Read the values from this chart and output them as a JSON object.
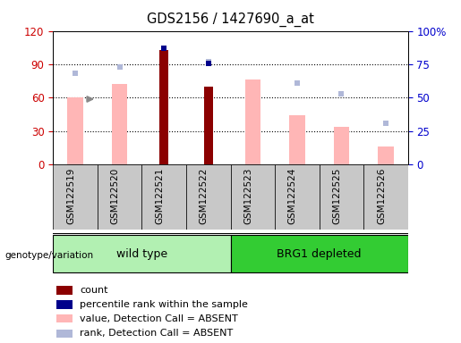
{
  "title": "GDS2156 / 1427690_a_at",
  "samples": [
    "GSM122519",
    "GSM122520",
    "GSM122521",
    "GSM122522",
    "GSM122523",
    "GSM122524",
    "GSM122525",
    "GSM122526"
  ],
  "count_values": [
    null,
    null,
    103,
    70,
    null,
    null,
    null,
    null
  ],
  "value_absent": [
    60,
    72,
    null,
    null,
    76,
    44,
    34,
    16
  ],
  "rank_absent": [
    68,
    73,
    null,
    77,
    null,
    61,
    53,
    31
  ],
  "percentile_rank": [
    null,
    null,
    87,
    76,
    null,
    null,
    null,
    null
  ],
  "ylim_left": [
    0,
    120
  ],
  "ylim_right": [
    0,
    100
  ],
  "left_ticks": [
    0,
    30,
    60,
    90,
    120
  ],
  "right_ticks": [
    0,
    25,
    50,
    75,
    100
  ],
  "right_tick_labels": [
    "0",
    "25",
    "50",
    "75",
    "100%"
  ],
  "left_tick_color": "#cc0000",
  "right_tick_color": "#0000cc",
  "count_color": "#8b0000",
  "percentile_color": "#00008b",
  "value_absent_color": "#ffb6b6",
  "rank_absent_color": "#b0b8d8",
  "bar_width": 0.35,
  "legend_items": [
    "count",
    "percentile rank within the sample",
    "value, Detection Call = ABSENT",
    "rank, Detection Call = ABSENT"
  ],
  "legend_colors": [
    "#8b0000",
    "#00008b",
    "#ffb6b6",
    "#b0b8d8"
  ],
  "group_box_color_light": "#b2f0b2",
  "group_box_color_dark": "#33cc33",
  "tick_bg_color": "#c8c8c8",
  "figure_bg": "#ffffff"
}
